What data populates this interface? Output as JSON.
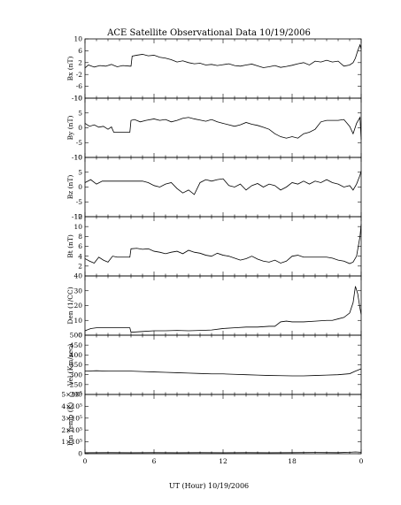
{
  "title": "ACE Satellite Observational Data   10/19/2006",
  "xlabel": "UT (Hour)   10/19/2006",
  "colors": {
    "line": "#000000",
    "background": "#ffffff"
  },
  "chart_data": [
    {
      "type": "line",
      "ylabel": "Bx (nT)",
      "ylim": [
        -10,
        10
      ],
      "yticks": [
        "10",
        "6",
        "2",
        "-2",
        "-6",
        "-10"
      ],
      "ytick_values": [
        10,
        6,
        2,
        -2,
        -6,
        -10
      ],
      "x": [
        0,
        0.3,
        0.8,
        1.3,
        1.8,
        2.3,
        2.8,
        3.3,
        3.9,
        4.0,
        4.1,
        4.5,
        5.0,
        5.5,
        6.0,
        6.5,
        7.0,
        7.5,
        8.0,
        8.5,
        9.0,
        9.5,
        10.0,
        10.5,
        11.0,
        11.5,
        12.0,
        12.5,
        13.0,
        13.5,
        14.0,
        14.5,
        15.0,
        15.5,
        16.0,
        16.5,
        17.0,
        17.5,
        18.0,
        18.5,
        19.0,
        19.5,
        20.0,
        20.5,
        21.0,
        21.5,
        22.0,
        22.5,
        23.0,
        23.3,
        23.5,
        23.7,
        23.9,
        24.0
      ],
      "series": [
        {
          "values": [
            0.2,
            1.2,
            0.5,
            1.0,
            0.8,
            1.4,
            0.6,
            1.0,
            0.8,
            0.8,
            4.2,
            4.5,
            4.8,
            4.3,
            4.5,
            3.8,
            3.5,
            3.0,
            2.2,
            2.6,
            2.0,
            1.6,
            1.8,
            1.2,
            1.4,
            1.0,
            1.3,
            1.6,
            1.0,
            0.8,
            1.2,
            1.5,
            0.9,
            0.3,
            0.6,
            1.0,
            0.4,
            0.7,
            1.1,
            1.6,
            2.0,
            1.2,
            2.5,
            2.2,
            2.8,
            2.2,
            2.5,
            0.8,
            1.2,
            2.0,
            3.5,
            6.0,
            8.0,
            6.5
          ]
        }
      ]
    },
    {
      "type": "line",
      "ylabel": "By (nT)",
      "ylim": [
        -10,
        10
      ],
      "yticks": [
        "10",
        "5",
        "0",
        "-5",
        "-10"
      ],
      "ytick_values": [
        10,
        5,
        0,
        -5,
        -10
      ],
      "x": [
        0,
        0.4,
        0.8,
        1.2,
        1.6,
        2.0,
        2.3,
        2.5,
        3.0,
        3.5,
        3.9,
        4.0,
        4.3,
        4.8,
        5.3,
        6.0,
        6.5,
        7.0,
        7.5,
        8.0,
        8.5,
        9.0,
        9.5,
        10.0,
        10.5,
        11.0,
        11.5,
        12.0,
        12.5,
        13.0,
        13.5,
        14.0,
        14.5,
        15.0,
        15.5,
        16.0,
        16.5,
        17.0,
        17.5,
        18.0,
        18.5,
        19.0,
        19.5,
        20.0,
        20.5,
        21.0,
        21.5,
        22.0,
        22.5,
        23.0,
        23.3,
        23.6,
        23.9,
        24.0
      ],
      "series": [
        {
          "values": [
            1.5,
            0.5,
            1.0,
            0.2,
            0.5,
            -0.5,
            0.3,
            -1.5,
            -1.5,
            -1.5,
            -1.5,
            2.5,
            2.8,
            2.0,
            2.5,
            3.0,
            2.5,
            2.8,
            2.0,
            2.5,
            3.2,
            3.5,
            3.0,
            2.6,
            2.2,
            2.8,
            2.0,
            1.5,
            1.0,
            0.5,
            1.0,
            1.8,
            1.2,
            0.8,
            0.2,
            -0.5,
            -2.0,
            -3.0,
            -3.5,
            -3.0,
            -3.5,
            -2.0,
            -1.5,
            -0.5,
            2.0,
            2.5,
            2.5,
            2.5,
            2.8,
            0.5,
            -2.0,
            1.5,
            3.5,
            -4.0
          ]
        }
      ]
    },
    {
      "type": "line",
      "ylabel": "Bz (nT)",
      "ylim": [
        -10,
        10
      ],
      "yticks": [
        "10",
        "5",
        "0",
        "-5",
        "-10"
      ],
      "ytick_values": [
        10,
        5,
        0,
        -5,
        -10
      ],
      "x": [
        0,
        0.5,
        1.0,
        1.5,
        2.0,
        2.5,
        3.0,
        3.5,
        4.0,
        4.5,
        5.0,
        5.5,
        6.0,
        6.5,
        7.0,
        7.5,
        8.0,
        8.5,
        9.0,
        9.5,
        10.0,
        10.5,
        11.0,
        11.5,
        12.0,
        12.5,
        13.0,
        13.5,
        14.0,
        14.5,
        15.0,
        15.5,
        16.0,
        16.5,
        17.0,
        17.5,
        18.0,
        18.5,
        19.0,
        19.5,
        20.0,
        20.5,
        21.0,
        21.5,
        22.0,
        22.5,
        23.0,
        23.3,
        23.6,
        23.9,
        24.0
      ],
      "series": [
        {
          "values": [
            1.5,
            2.5,
            1.0,
            2.0,
            2.0,
            2.0,
            2.0,
            2.0,
            2.0,
            2.0,
            2.0,
            1.5,
            0.5,
            0.0,
            1.0,
            1.5,
            -0.5,
            -2.0,
            -1.0,
            -2.5,
            1.5,
            2.5,
            2.0,
            2.5,
            2.8,
            0.5,
            0.0,
            1.0,
            -1.0,
            0.5,
            1.2,
            0.0,
            1.0,
            0.5,
            -1.0,
            0.0,
            1.5,
            1.0,
            2.0,
            1.0,
            2.0,
            1.5,
            2.5,
            1.5,
            1.0,
            0.0,
            0.5,
            -1.0,
            1.0,
            4.0,
            5.5
          ]
        }
      ]
    },
    {
      "type": "line",
      "ylabel": "Bt (nT)",
      "ylim": [
        0,
        12
      ],
      "yticks": [
        "12",
        "10",
        "8",
        "6",
        "4",
        "2"
      ],
      "ytick_values": [
        12,
        10,
        8,
        6,
        4,
        2
      ],
      "x": [
        0,
        0.4,
        0.8,
        1.2,
        1.6,
        2.0,
        2.4,
        2.8,
        3.2,
        3.6,
        3.9,
        4.0,
        4.5,
        5.0,
        5.5,
        6.0,
        6.5,
        7.0,
        7.5,
        8.0,
        8.5,
        9.0,
        9.5,
        10.0,
        10.5,
        11.0,
        11.5,
        12.0,
        12.5,
        13.0,
        13.5,
        14.0,
        14.5,
        15.0,
        15.5,
        16.0,
        16.5,
        17.0,
        17.5,
        18.0,
        18.5,
        19.0,
        19.5,
        20.0,
        20.5,
        21.0,
        21.5,
        22.0,
        22.5,
        23.0,
        23.3,
        23.6,
        23.9,
        24.0
      ],
      "series": [
        {
          "values": [
            3.5,
            3.0,
            2.6,
            3.8,
            3.2,
            2.8,
            4.0,
            3.8,
            3.8,
            3.8,
            3.8,
            5.5,
            5.6,
            5.4,
            5.5,
            5.0,
            4.8,
            4.5,
            4.8,
            5.0,
            4.5,
            5.2,
            4.8,
            4.6,
            4.2,
            4.0,
            4.6,
            4.2,
            4.0,
            3.6,
            3.2,
            3.5,
            4.0,
            3.4,
            3.0,
            2.8,
            3.2,
            2.6,
            3.0,
            4.0,
            4.2,
            3.8,
            3.8,
            3.8,
            3.8,
            3.8,
            3.6,
            3.2,
            3.0,
            2.5,
            2.8,
            4.0,
            8.0,
            10.5
          ]
        }
      ]
    },
    {
      "type": "line",
      "ylabel": "Den (1/CC)",
      "ylim": [
        0,
        40
      ],
      "yticks": [
        "40",
        "30",
        "20",
        "10",
        "0"
      ],
      "ytick_values": [
        40,
        30,
        20,
        10,
        0
      ],
      "x": [
        0,
        0.5,
        1.0,
        2.0,
        3.0,
        3.9,
        4.0,
        5.0,
        6.0,
        7.0,
        8.0,
        9.0,
        10.0,
        11.0,
        12.0,
        13.0,
        14.0,
        15.0,
        16.0,
        16.5,
        17.0,
        17.5,
        18.0,
        19.0,
        20.0,
        21.0,
        21.5,
        22.0,
        22.5,
        23.0,
        23.3,
        23.5,
        23.7,
        23.9,
        24.0
      ],
      "series": [
        {
          "values": [
            3.0,
            4.5,
            5.0,
            5.0,
            5.0,
            5.0,
            2.0,
            2.5,
            3.0,
            3.0,
            3.2,
            3.0,
            3.2,
            3.5,
            4.5,
            5.0,
            5.5,
            5.5,
            6.0,
            6.0,
            9.0,
            9.5,
            9.0,
            9.0,
            9.5,
            10.0,
            10.0,
            11.0,
            12.0,
            15.0,
            22.0,
            33.0,
            28.0,
            18.0,
            14.0
          ]
        }
      ]
    },
    {
      "type": "line",
      "ylabel": "Vel (Km/sec)",
      "ylim": [
        200,
        500
      ],
      "yticks": [
        "500",
        "450",
        "400",
        "350",
        "300",
        "250",
        "200"
      ],
      "ytick_values": [
        500,
        450,
        400,
        350,
        300,
        250,
        200
      ],
      "x": [
        0,
        1.0,
        2.0,
        3.0,
        4.0,
        5.0,
        6.0,
        7.0,
        8.0,
        9.0,
        10.0,
        11.0,
        12.0,
        13.0,
        14.0,
        15.0,
        16.0,
        17.0,
        18.0,
        19.0,
        20.0,
        21.0,
        22.0,
        23.0,
        23.5,
        24.0
      ],
      "series": [
        {
          "values": [
            318,
            320,
            318,
            318,
            318,
            316,
            314,
            312,
            310,
            308,
            306,
            304,
            304,
            302,
            300,
            298,
            296,
            295,
            294,
            294,
            296,
            298,
            300,
            305,
            318,
            330
          ]
        }
      ]
    },
    {
      "type": "line",
      "ylabel": "Ion Temp (K)",
      "ylim": [
        0,
        500000
      ],
      "yticks": [
        "5×10⁵",
        "4×10⁵",
        "3×10⁵",
        "2×10⁵",
        "1×10⁵",
        "0"
      ],
      "ytick_values": [
        500000,
        400000,
        300000,
        200000,
        100000,
        0
      ],
      "x": [
        0,
        2,
        4,
        6,
        8,
        10,
        12,
        14,
        16,
        18,
        20,
        22,
        23,
        23.5,
        24
      ],
      "series": [
        {
          "values": [
            8000,
            9000,
            8000,
            9000,
            8000,
            9000,
            8000,
            9000,
            8000,
            9000,
            10000,
            9000,
            12000,
            15000,
            12000
          ]
        }
      ]
    }
  ],
  "xticks": [
    "0",
    "6",
    "12",
    "18",
    "0"
  ],
  "xtick_values": [
    0,
    6,
    12,
    18,
    24
  ],
  "xlim": [
    0,
    24
  ]
}
